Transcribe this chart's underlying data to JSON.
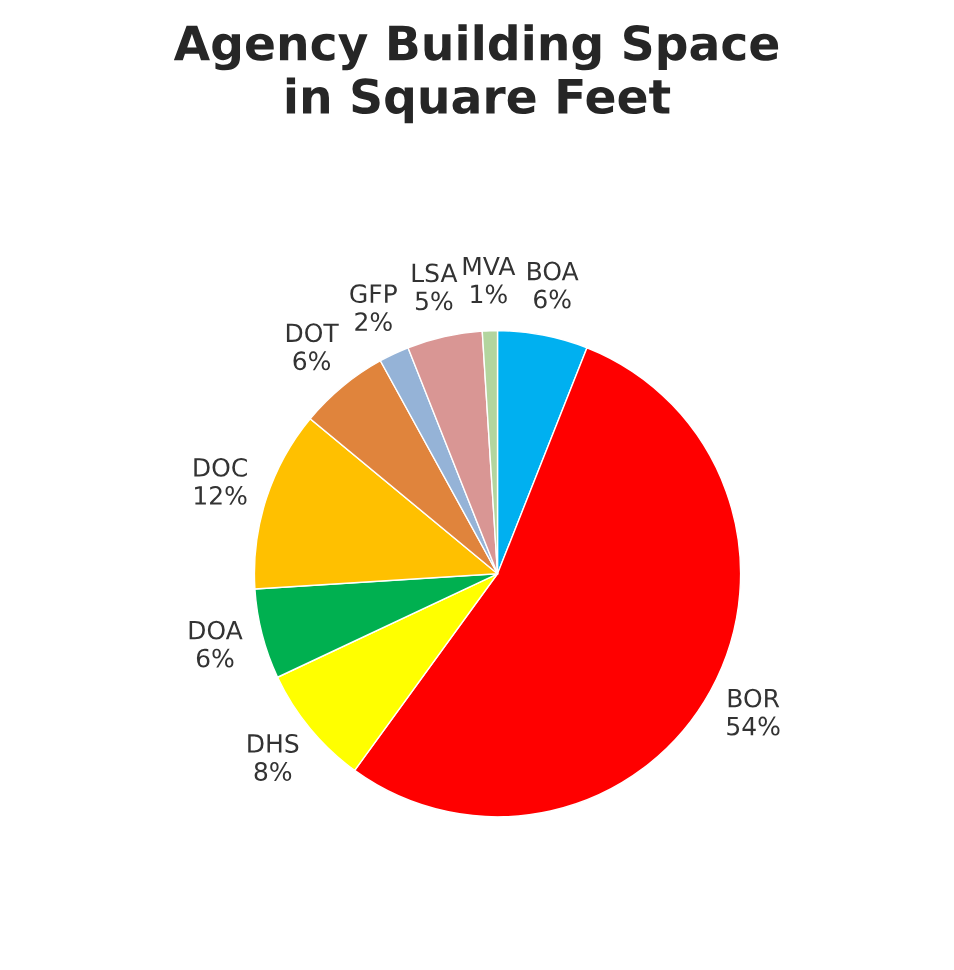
{
  "chart_data": {
    "type": "pie",
    "title": "Agency Building Space\nin Square Feet",
    "categories": [
      "BOA",
      "BOR",
      "DHS",
      "DOA",
      "DOC",
      "DOT",
      "GFP",
      "LSA",
      "MVA"
    ],
    "values": [
      6,
      54,
      8,
      6,
      12,
      6,
      2,
      5,
      1
    ],
    "value_labels": [
      "6%",
      "54%",
      "8%",
      "6%",
      "12%",
      "6%",
      "2%",
      "5%",
      "1%"
    ],
    "colors": [
      "#00b0f0",
      "#ff0000",
      "#ffff00",
      "#00b050",
      "#ffc000",
      "#e0843c",
      "#95b3d7",
      "#d99694",
      "#b3d59e"
    ],
    "legend": false
  }
}
